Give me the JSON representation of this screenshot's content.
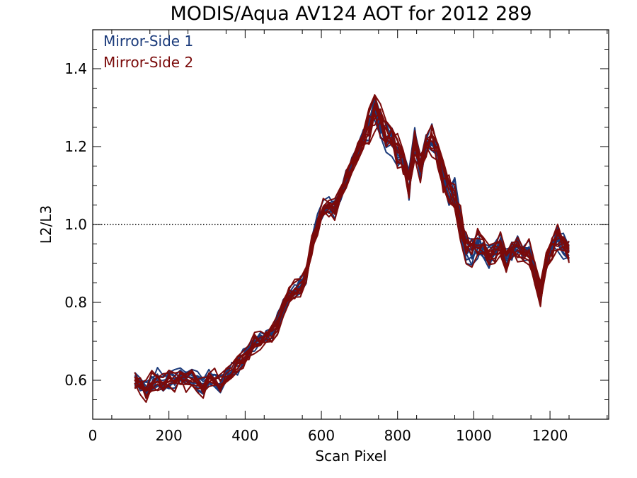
{
  "chart_data": {
    "type": "line",
    "title": "MODIS/Aqua AV124 AOT for 2012 289",
    "xlabel": "Scan Pixel",
    "ylabel": "L2/L3",
    "xlim": [
      0,
      1354
    ],
    "ylim": [
      0.5,
      1.5
    ],
    "x_ticks": [
      0,
      200,
      400,
      600,
      800,
      1000,
      1200
    ],
    "x_tick_labels": [
      "0",
      "200",
      "400",
      "600",
      "800",
      "1000",
      "1200"
    ],
    "y_ticks": [
      0.6,
      0.8,
      1.0,
      1.2,
      1.4
    ],
    "y_tick_labels": [
      "0.6",
      "0.8",
      "1.0",
      "1.2",
      "1.4"
    ],
    "reference_line": {
      "y": 1.0,
      "style": "dotted"
    },
    "legend_position": "top-left",
    "series": [
      {
        "name": "Mirror-Side 1",
        "color": "#1a3a7a"
      },
      {
        "name": "Mirror-Side 2",
        "color": "#7a0a0a"
      }
    ],
    "x": [
      110,
      125,
      140,
      155,
      170,
      185,
      200,
      215,
      230,
      245,
      260,
      275,
      290,
      305,
      320,
      335,
      350,
      365,
      380,
      395,
      410,
      425,
      440,
      455,
      470,
      485,
      500,
      515,
      530,
      545,
      560,
      575,
      590,
      605,
      620,
      635,
      650,
      665,
      680,
      695,
      710,
      725,
      740,
      755,
      770,
      785,
      800,
      815,
      830,
      845,
      860,
      875,
      890,
      905,
      920,
      935,
      950,
      965,
      980,
      995,
      1010,
      1025,
      1040,
      1055,
      1070,
      1085,
      1100,
      1115,
      1130,
      1145,
      1160,
      1175,
      1190,
      1205,
      1220,
      1235,
      1250
    ],
    "mean_profile": [
      0.6,
      0.59,
      0.575,
      0.595,
      0.605,
      0.59,
      0.605,
      0.6,
      0.61,
      0.6,
      0.605,
      0.595,
      0.585,
      0.61,
      0.6,
      0.59,
      0.61,
      0.625,
      0.64,
      0.655,
      0.675,
      0.7,
      0.705,
      0.715,
      0.72,
      0.745,
      0.79,
      0.82,
      0.83,
      0.84,
      0.87,
      0.95,
      1.0,
      1.04,
      1.05,
      1.04,
      1.08,
      1.12,
      1.15,
      1.19,
      1.22,
      1.25,
      1.29,
      1.26,
      1.23,
      1.22,
      1.19,
      1.16,
      1.11,
      1.21,
      1.15,
      1.2,
      1.22,
      1.18,
      1.13,
      1.09,
      1.08,
      1.0,
      0.94,
      0.93,
      0.95,
      0.94,
      0.92,
      0.93,
      0.95,
      0.91,
      0.93,
      0.94,
      0.92,
      0.93,
      0.88,
      0.82,
      0.91,
      0.94,
      0.97,
      0.95,
      0.93
    ],
    "lines_per_side": 10,
    "spread": 0.035
  }
}
